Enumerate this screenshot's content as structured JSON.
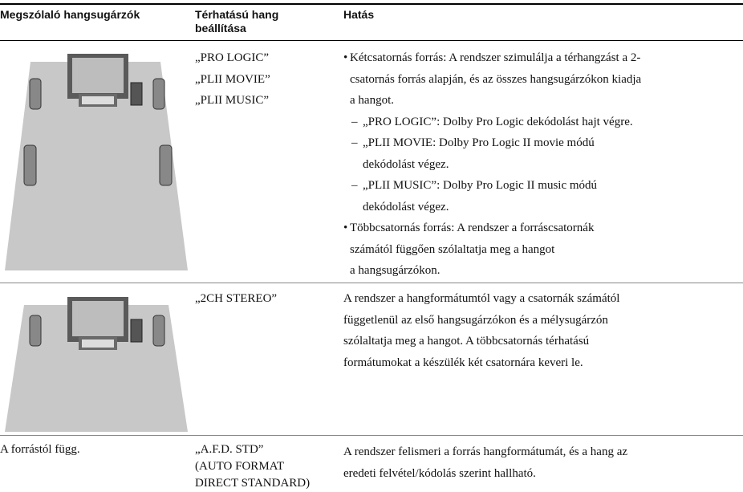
{
  "table": {
    "headers": [
      "Megszólaló hangsugárzók",
      "Térhatású hang beállítása",
      "Hatás"
    ],
    "rows": [
      {
        "settings": [
          "„PRO LOGIC”",
          "„PLII MOVIE”",
          "„PLII MUSIC”"
        ],
        "effect": [
          {
            "marker": "•",
            "lines": [
              "Kétcsatornás forrás: A rendszer szimulálja a térhangzást a 2-",
              "csatornás forrás alapján, és az összes hangsugárzókon kiadja",
              "a hangot."
            ]
          },
          {
            "marker": "–",
            "lines": [
              "„PRO LOGIC”: Dolby Pro Logic dekódolást hajt végre."
            ]
          },
          {
            "marker": "–",
            "lines": [
              "„PLII MOVIE: Dolby Pro Logic II movie módú",
              "dekódolást végez."
            ]
          },
          {
            "marker": "–",
            "lines": [
              "„PLII MUSIC”: Dolby Pro Logic II music módú",
              "dekódolást végez."
            ]
          },
          {
            "marker": "•",
            "lines": [
              "Többcsatornás forrás: A rendszer a forráscsatornák",
              "számától függően szólaltatja meg a hangot",
              "a hangsugárzókon."
            ]
          }
        ]
      },
      {
        "settings": [
          "„2CH STEREO”"
        ],
        "effect": [
          {
            "lines": [
              "A rendszer a hangformátumtól vagy a csatornák számától",
              "függetlenül az első hangsugárzókon és a mélysugárzón",
              "szólaltatja meg a hangot. A többcsatornás térhatású",
              "formátumokat a készülék két csatornára keveri le."
            ]
          }
        ]
      },
      {
        "speakers": "A forrástól függ.",
        "settings": [
          "„A.F.D. STD”",
          "(AUTO FORMAT",
          "DIRECT STANDARD)"
        ],
        "effect": [
          {
            "lines": [
              "A rendszer felismeri a forrás hangformátumát, és a hang az",
              "eredeti felvétel/kódolás szerint hallható."
            ]
          }
        ]
      }
    ]
  }
}
